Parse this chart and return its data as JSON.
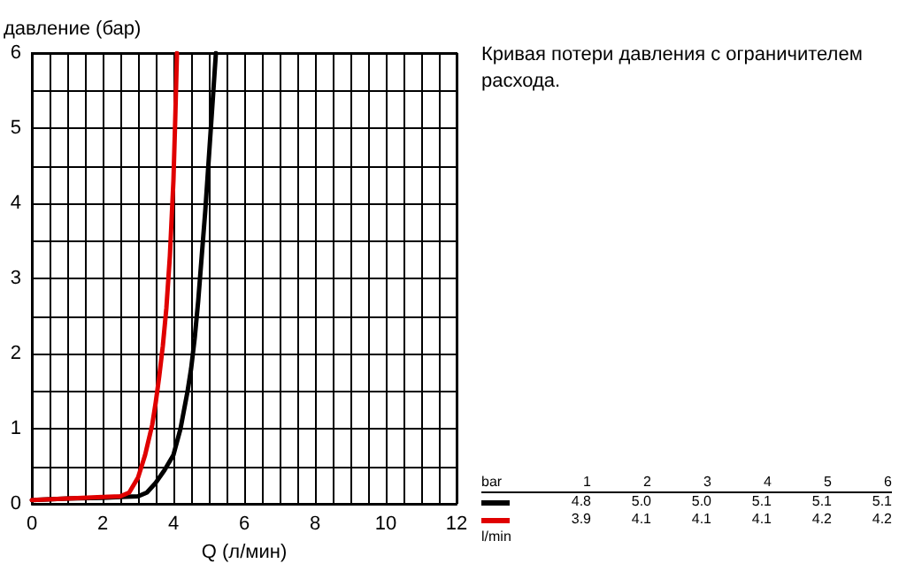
{
  "chart_data": {
    "type": "line",
    "title": "Кривая потери давления с ограничителем расхода.",
    "xlabel": "Q (л/мин)",
    "ylabel": "давление (бар)",
    "series": [
      {
        "color": "#000000",
        "x": [
          0,
          1,
          2,
          2.5,
          3,
          3.25,
          3.5,
          3.75,
          4,
          4.2,
          4.4,
          4.5,
          4.6,
          4.7,
          4.8,
          4.9,
          5,
          5.1,
          5.2
        ],
        "values": [
          0.05,
          0.07,
          0.08,
          0.09,
          0.1,
          0.15,
          0.28,
          0.45,
          0.65,
          1.0,
          1.5,
          1.8,
          2.2,
          2.7,
          3.3,
          3.9,
          4.6,
          5.3,
          6
        ]
      },
      {
        "color": "#e00000",
        "x": [
          0,
          1,
          2,
          2.5,
          2.75,
          3,
          3.2,
          3.4,
          3.5,
          3.6,
          3.7,
          3.8,
          3.9,
          4,
          4.05,
          4.1
        ],
        "values": [
          0.05,
          0.07,
          0.09,
          0.1,
          0.15,
          0.35,
          0.65,
          1.05,
          1.35,
          1.7,
          2.1,
          2.6,
          3.3,
          4.3,
          5.1,
          6
        ]
      }
    ],
    "xlim": [
      0,
      12
    ],
    "ylim": [
      0,
      6
    ],
    "xticks": [
      0,
      {
        "value": 0.5,
        "label": null
      },
      {
        "value": 1,
        "label": null
      },
      {
        "value": 1.5,
        "label": null
      },
      2,
      {
        "value": 2.5,
        "label": null
      },
      {
        "value": 3,
        "label": null
      },
      {
        "value": 3.5,
        "label": null
      },
      4,
      {
        "value": 4.5,
        "label": null
      },
      {
        "value": 5,
        "label": null
      },
      {
        "value": 5.5,
        "label": null
      },
      6,
      {
        "value": 6.5,
        "label": null
      },
      {
        "value": 7,
        "label": null
      },
      {
        "value": 7.5,
        "label": null
      },
      8,
      {
        "value": 8.5,
        "label": null
      },
      {
        "value": 9,
        "label": null
      },
      {
        "value": 9.5,
        "label": null
      },
      10,
      {
        "value": 10.5,
        "label": null
      },
      {
        "value": 11,
        "label": null
      },
      {
        "value": 11.5,
        "label": null
      },
      12
    ],
    "yticks": [
      0,
      {
        "value": 0.5,
        "label": null
      },
      1,
      {
        "value": 1.5,
        "label": null
      },
      2,
      {
        "value": 2.5,
        "label": null
      },
      3,
      {
        "value": 3.5,
        "label": null
      },
      4,
      {
        "value": 4.5,
        "label": null
      },
      5,
      {
        "value": 5.5,
        "label": null
      },
      6
    ],
    "grid": true,
    "marker": "none",
    "line_style": "solid",
    "annotations": [
      "bar 1 2 3 4 5 6",
      "4.8 5.0 5.0 5.1 5.1 5.1",
      "3.9 4.1 4.1 4.1 4.2 4.2",
      "l/min"
    ]
  }
}
